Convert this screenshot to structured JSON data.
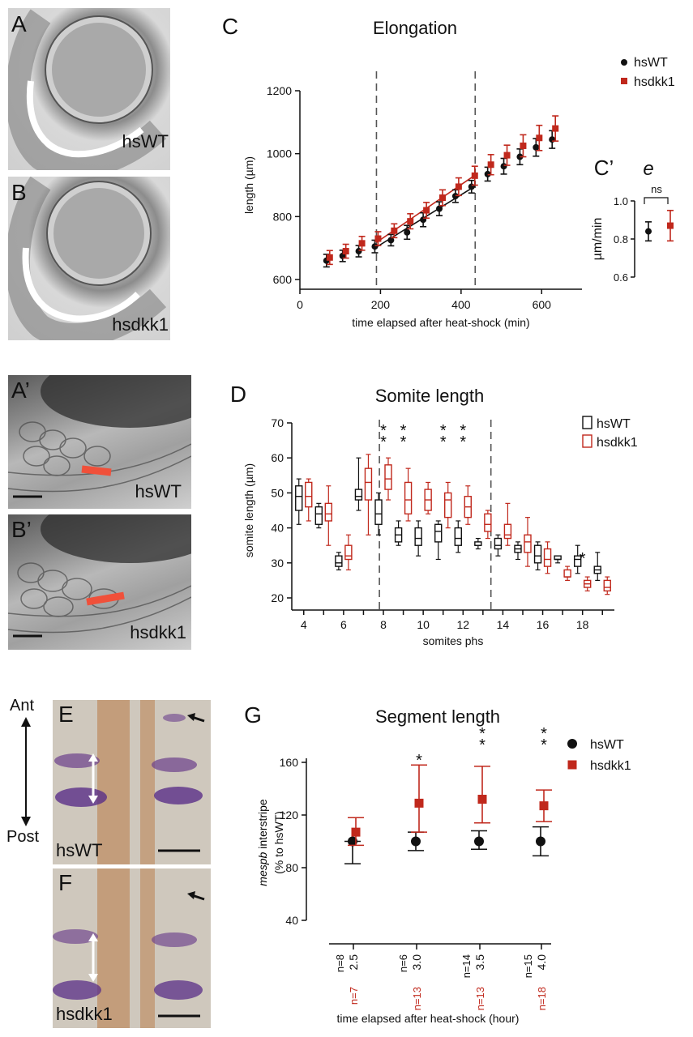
{
  "panels": {
    "A": {
      "letter": "A",
      "label": "hsWT"
    },
    "B": {
      "letter": "B",
      "label": "hsdkk1"
    },
    "A_prime": {
      "letter": "A’",
      "label": "hsWT"
    },
    "B_prime": {
      "letter": "B’",
      "label": "hsdkk1"
    },
    "E": {
      "letter": "E",
      "label": "hsWT"
    },
    "F": {
      "letter": "F",
      "label": "hsdkk1"
    },
    "axis_labels": {
      "ant": "Ant",
      "post": "Post"
    }
  },
  "colors": {
    "wt": "#111111",
    "dkk1": "#c0281c",
    "red_bar": "#f0503a",
    "dash": "#555555"
  },
  "chart_data": [
    {
      "id": "C",
      "letter": "C",
      "type": "scatter",
      "title": "Elongation",
      "xlabel": "time elapsed after heat-shock (min)",
      "ylabel": "length (µm)",
      "xlim": [
        0,
        700
      ],
      "ylim": [
        600,
        1200
      ],
      "xticks": [
        0,
        200,
        400,
        600
      ],
      "yticks": [
        600,
        800,
        1000,
        1200
      ],
      "vlines": [
        190,
        435
      ],
      "legend": [
        "hsWT",
        "hsdkk1"
      ],
      "legend_position": "top-right",
      "series": [
        {
          "name": "hsWT",
          "marker": "circle",
          "x": [
            70,
            110,
            150,
            190,
            230,
            270,
            310,
            350,
            390,
            430,
            470,
            510,
            550,
            590,
            630
          ],
          "y": [
            660,
            675,
            690,
            705,
            725,
            750,
            790,
            825,
            865,
            895,
            935,
            960,
            990,
            1020,
            1045
          ],
          "err": [
            20,
            18,
            18,
            20,
            18,
            22,
            22,
            22,
            20,
            20,
            22,
            25,
            25,
            28,
            28
          ]
        },
        {
          "name": "hsdkk1",
          "marker": "square",
          "x": [
            70,
            110,
            150,
            190,
            230,
            270,
            310,
            350,
            390,
            430,
            470,
            510,
            550,
            590,
            630
          ],
          "y": [
            670,
            690,
            715,
            730,
            755,
            785,
            820,
            860,
            895,
            930,
            965,
            995,
            1025,
            1050,
            1080
          ],
          "err": [
            22,
            22,
            22,
            22,
            22,
            24,
            25,
            25,
            28,
            30,
            32,
            32,
            35,
            40,
            40
          ]
        }
      ],
      "fit_lines": [
        {
          "series": "hsWT",
          "x": [
            190,
            435
          ],
          "y": [
            703,
            897
          ]
        },
        {
          "series": "hsdkk1",
          "x": [
            190,
            435
          ],
          "y": [
            718,
            932
          ]
        }
      ]
    },
    {
      "id": "C_prime",
      "letter": "C’",
      "type": "scatter",
      "title": "e",
      "xlabel": "",
      "ylabel": "µm/min",
      "ylim": [
        0.6,
        1.0
      ],
      "yticks": [
        0.6,
        0.8,
        1.0
      ],
      "annotation": "ns",
      "series": [
        {
          "name": "hsWT",
          "value": 0.84,
          "err": 0.05
        },
        {
          "name": "hsdkk1",
          "value": 0.87,
          "err": 0.08
        }
      ]
    },
    {
      "id": "D",
      "letter": "D",
      "type": "box",
      "title": "Somite length",
      "xlabel": "somites phs",
      "ylabel": "somite length (µm)",
      "ylim": [
        20,
        70
      ],
      "yticks": [
        20,
        30,
        40,
        50,
        60,
        70
      ],
      "categories": [
        4,
        5,
        6,
        7,
        8,
        9,
        10,
        11,
        12,
        13,
        14,
        15,
        16,
        17,
        18,
        19
      ],
      "xticklabels": [
        4,
        6,
        8,
        10,
        12,
        14,
        16,
        18
      ],
      "vlines": [
        7.8,
        13.4
      ],
      "legend": [
        "hsWT",
        "hsdkk1"
      ],
      "legend_position": "top-right",
      "significance": [
        {
          "somite": 8,
          "label": "**"
        },
        {
          "somite": 9,
          "label": "**"
        },
        {
          "somite": 11,
          "label": "**"
        },
        {
          "somite": 12,
          "label": "**"
        },
        {
          "somite": 18,
          "label": "*"
        }
      ],
      "series": [
        {
          "name": "hsWT",
          "boxes": [
            {
              "min": 41,
              "q1": 45,
              "median": 49,
              "q3": 52,
              "max": 54
            },
            {
              "min": 40,
              "q1": 41,
              "median": 44,
              "q3": 46,
              "max": 47
            },
            {
              "min": 28,
              "q1": 29,
              "median": 30,
              "q3": 32,
              "max": 33
            },
            {
              "min": 45,
              "q1": 48,
              "median": 49,
              "q3": 51,
              "max": 60
            },
            {
              "min": 38,
              "q1": 41,
              "median": 44,
              "q3": 48,
              "max": 50
            },
            {
              "min": 35,
              "q1": 36,
              "median": 38,
              "q3": 40,
              "max": 42
            },
            {
              "min": 32,
              "q1": 35,
              "median": 37,
              "q3": 40,
              "max": 42
            },
            {
              "min": 31,
              "q1": 36,
              "median": 39,
              "q3": 41,
              "max": 42
            },
            {
              "min": 33,
              "q1": 35,
              "median": 37,
              "q3": 40,
              "max": 42
            },
            {
              "min": 34,
              "q1": 35,
              "median": 35,
              "q3": 36,
              "max": 37
            },
            {
              "min": 32,
              "q1": 34,
              "median": 35,
              "q3": 37,
              "max": 38
            },
            {
              "min": 31,
              "q1": 33,
              "median": 34,
              "q3": 35,
              "max": 36
            },
            {
              "min": 28,
              "q1": 30,
              "median": 32,
              "q3": 35,
              "max": 36
            },
            {
              "min": 30,
              "q1": 31,
              "median": 31,
              "q3": 32,
              "max": 32
            },
            {
              "min": 27,
              "q1": 29,
              "median": 31,
              "q3": 32,
              "max": 35
            },
            {
              "min": 25,
              "q1": 27,
              "median": 28,
              "q3": 29,
              "max": 33
            }
          ]
        },
        {
          "name": "hsdkk1",
          "boxes": [
            {
              "min": 42,
              "q1": 46,
              "median": 49,
              "q3": 53,
              "max": 54
            },
            {
              "min": 35,
              "q1": 42,
              "median": 44,
              "q3": 47,
              "max": 52
            },
            {
              "min": 28,
              "q1": 31,
              "median": 32,
              "q3": 35,
              "max": 38
            },
            {
              "min": 38,
              "q1": 48,
              "median": 53,
              "q3": 57,
              "max": 61
            },
            {
              "min": 48,
              "q1": 51,
              "median": 54,
              "q3": 58,
              "max": 60
            },
            {
              "min": 42,
              "q1": 44,
              "median": 48,
              "q3": 53,
              "max": 57
            },
            {
              "min": 44,
              "q1": 45,
              "median": 48,
              "q3": 51,
              "max": 53
            },
            {
              "min": 40,
              "q1": 43,
              "median": 48,
              "q3": 50,
              "max": 53
            },
            {
              "min": 41,
              "q1": 43,
              "median": 46,
              "q3": 49,
              "max": 52
            },
            {
              "min": 37,
              "q1": 39,
              "median": 41,
              "q3": 44,
              "max": 45
            },
            {
              "min": 35,
              "q1": 37,
              "median": 38,
              "q3": 41,
              "max": 47
            },
            {
              "min": 29,
              "q1": 33,
              "median": 36,
              "q3": 38,
              "max": 43
            },
            {
              "min": 27,
              "q1": 29,
              "median": 31,
              "q3": 34,
              "max": 36
            },
            {
              "min": 25,
              "q1": 26,
              "median": 26,
              "q3": 28,
              "max": 29
            },
            {
              "min": 22,
              "q1": 23,
              "median": 24,
              "q3": 25,
              "max": 26
            },
            {
              "min": 21,
              "q1": 22,
              "median": 23,
              "q3": 25,
              "max": 26
            }
          ]
        }
      ]
    },
    {
      "id": "G",
      "letter": "G",
      "type": "scatter",
      "title": "Segment length",
      "ylabel_italic": "mespb",
      "ylabel_rest": "interstripe",
      "ylabel2": "(% to hsWT)",
      "xlabel": "time elapsed after heat-shock (hour)",
      "ylim": [
        40,
        160
      ],
      "yticks": [
        40,
        80,
        120,
        160
      ],
      "categories": [
        "2.5",
        "3.0",
        "3.5",
        "4.0"
      ],
      "n_wt": [
        "n=8",
        "n=6",
        "n=14",
        "n=15"
      ],
      "n_dkk1": [
        "n=7",
        "n=13",
        "n=13",
        "n=18"
      ],
      "legend": [
        "hsWT",
        "hsdkk1"
      ],
      "legend_position": "top-right",
      "significance": [
        "",
        "*",
        "**",
        "**"
      ],
      "series": [
        {
          "name": "hsWT",
          "marker": "circle",
          "values": [
            100,
            100,
            100,
            100
          ],
          "err_lo": [
            17,
            7,
            6,
            11
          ],
          "err_hi": [
            0,
            7,
            8,
            11
          ]
        },
        {
          "name": "hsdkk1",
          "marker": "square",
          "values": [
            107,
            129,
            132,
            127
          ],
          "err_lo": [
            10,
            22,
            18,
            12
          ],
          "err_hi": [
            11,
            29,
            25,
            12
          ]
        }
      ]
    }
  ]
}
